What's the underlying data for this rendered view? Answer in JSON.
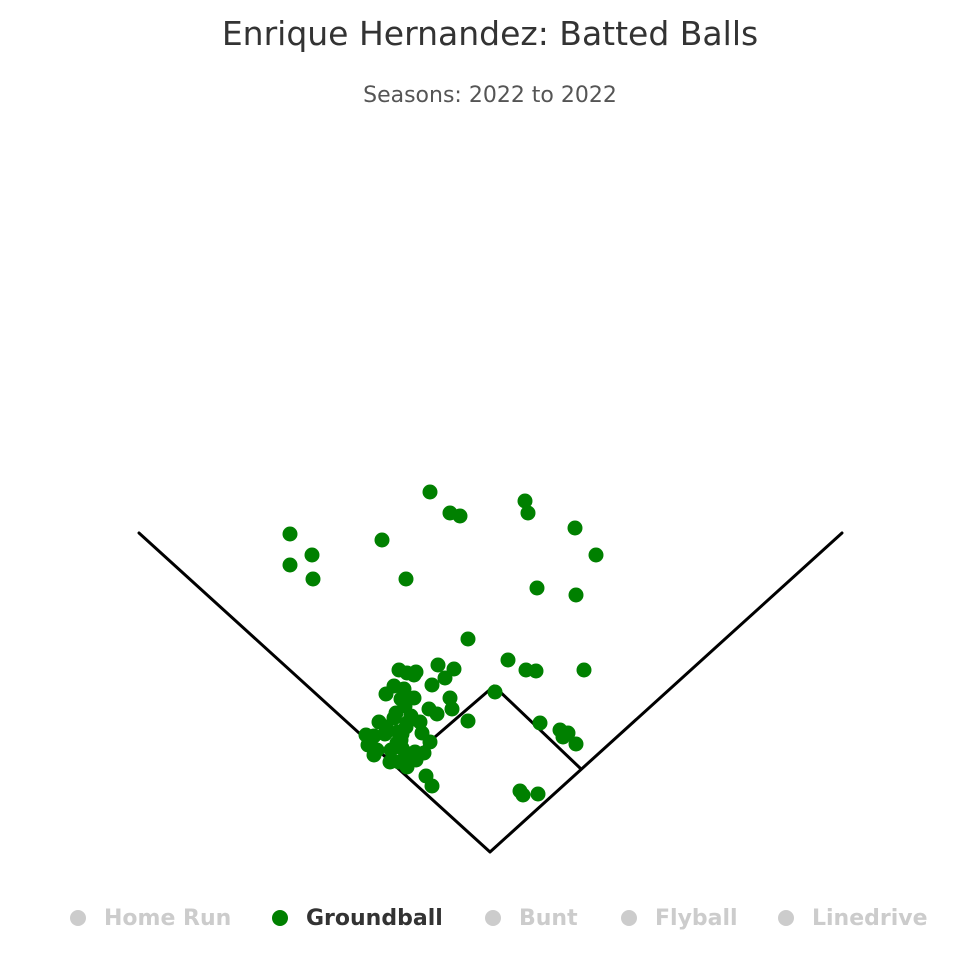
{
  "chart_data": {
    "type": "scatter",
    "title": "Enrique Hernandez: Batted Balls",
    "subtitle": "Seasons: 2022 to 2022",
    "legend": {
      "placement": "bottom",
      "items": [
        {
          "label": "Home Run",
          "color": "#cccccc",
          "active": false
        },
        {
          "label": "Groundball",
          "color": "#008000",
          "active": true
        },
        {
          "label": "Bunt",
          "color": "#cccccc",
          "active": false
        },
        {
          "label": "Flyball",
          "color": "#cccccc",
          "active": false
        },
        {
          "label": "Linedrive",
          "color": "#cccccc",
          "active": false
        }
      ]
    },
    "series": [
      {
        "color": "#008000",
        "points": [
          [
            -60,
            360
          ],
          [
            35,
            351
          ],
          [
            -40,
            339
          ],
          [
            -30,
            336
          ],
          [
            38,
            339
          ],
          [
            85,
            324
          ],
          [
            106,
            297
          ],
          [
            -178,
            297
          ],
          [
            -177,
            273
          ],
          [
            -200,
            287
          ],
          [
            -200,
            318
          ],
          [
            -108,
            312
          ],
          [
            47,
            264
          ],
          [
            -84,
            273
          ],
          [
            86,
            257
          ],
          [
            -22,
            213
          ],
          [
            18,
            192
          ],
          [
            36,
            182
          ],
          [
            46,
            181
          ],
          [
            94,
            182
          ],
          [
            -52,
            187
          ],
          [
            -45,
            174
          ],
          [
            -36,
            183
          ],
          [
            -74,
            180
          ],
          [
            -58,
            167
          ],
          [
            -40,
            154
          ],
          [
            5,
            160
          ],
          [
            -61,
            143
          ],
          [
            -76,
            154
          ],
          [
            -53,
            138
          ],
          [
            -92,
            120
          ],
          [
            -88,
            118
          ],
          [
            -68,
            119
          ],
          [
            -89,
            112
          ],
          [
            -88,
            104
          ],
          [
            -99,
            102
          ],
          [
            -105,
            118
          ],
          [
            -111,
            130
          ],
          [
            -96,
            134
          ],
          [
            -83,
            129
          ],
          [
            -79,
            136
          ],
          [
            -70,
            130
          ],
          [
            -75,
            100
          ],
          [
            -60,
            110
          ],
          [
            -38,
            143
          ],
          [
            -22,
            131
          ],
          [
            -116,
            116
          ],
          [
            -113,
            102
          ],
          [
            -122,
            107
          ],
          [
            -124,
            117
          ],
          [
            -93,
            109
          ],
          [
            -84,
            99
          ],
          [
            -76,
            94
          ],
          [
            -66,
            99
          ],
          [
            -64,
            76
          ],
          [
            -58,
            66
          ],
          [
            -100,
            90
          ],
          [
            -91,
            90
          ],
          [
            -83,
            85
          ],
          [
            -116,
            97
          ],
          [
            -104,
            125
          ],
          [
            -96,
            166
          ],
          [
            -104,
            158
          ],
          [
            -89,
            153
          ],
          [
            -85,
            146
          ],
          [
            -86,
            163
          ],
          [
            -91,
            182
          ],
          [
            -83,
            179
          ],
          [
            -76,
            177
          ],
          [
            -84,
            125
          ],
          [
            -94,
            139
          ],
          [
            50,
            129
          ],
          [
            70,
            122
          ],
          [
            78,
            119
          ],
          [
            73,
            115
          ],
          [
            86,
            108
          ],
          [
            30,
            61
          ],
          [
            33,
            57
          ],
          [
            48,
            58
          ],
          [
            -74,
            92
          ]
        ]
      }
    ]
  }
}
